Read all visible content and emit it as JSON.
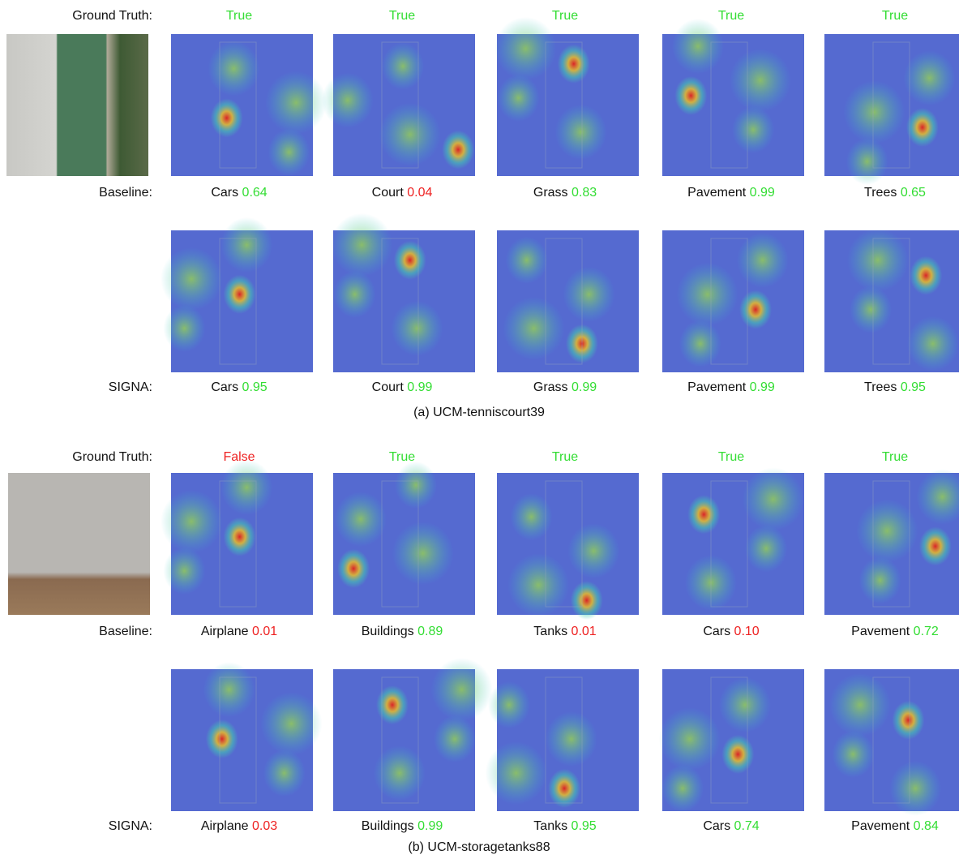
{
  "panels": [
    {
      "caption": "(a) UCM-tenniscourt39",
      "row_labels": {
        "truth": "Ground Truth:",
        "baseline": "Baseline:",
        "signa": "SIGNA:"
      },
      "columns": [
        {
          "truth": {
            "text": "True",
            "color": "#33dd33"
          },
          "baseline": {
            "label": "Cars",
            "score": "0.64",
            "color": "#33dd33"
          },
          "signa": {
            "label": "Cars",
            "score": "0.95",
            "color": "#33dd33"
          }
        },
        {
          "truth": {
            "text": "True",
            "color": "#33dd33"
          },
          "baseline": {
            "label": "Court",
            "score": "0.04",
            "color": "#ee2222"
          },
          "signa": {
            "label": "Court",
            "score": "0.99",
            "color": "#33dd33"
          }
        },
        {
          "truth": {
            "text": "True",
            "color": "#33dd33"
          },
          "baseline": {
            "label": "Grass",
            "score": "0.83",
            "color": "#33dd33"
          },
          "signa": {
            "label": "Grass",
            "score": "0.99",
            "color": "#33dd33"
          }
        },
        {
          "truth": {
            "text": "True",
            "color": "#33dd33"
          },
          "baseline": {
            "label": "Pavement",
            "score": "0.99",
            "color": "#33dd33"
          },
          "signa": {
            "label": "Pavement",
            "score": "0.99",
            "color": "#33dd33"
          }
        },
        {
          "truth": {
            "text": "True",
            "color": "#33dd33"
          },
          "baseline": {
            "label": "Trees",
            "score": "0.65",
            "color": "#33dd33"
          },
          "signa": {
            "label": "Trees",
            "score": "0.95",
            "color": "#33dd33"
          }
        }
      ]
    },
    {
      "caption": "(b) UCM-storagetanks88",
      "row_labels": {
        "truth": "Ground Truth:",
        "baseline": "Baseline:",
        "signa": "SIGNA:"
      },
      "columns": [
        {
          "truth": {
            "text": "False",
            "color": "#ee2222"
          },
          "baseline": {
            "label": "Airplane",
            "score": "0.01",
            "color": "#ee2222"
          },
          "signa": {
            "label": "Airplane",
            "score": "0.03",
            "color": "#ee2222"
          }
        },
        {
          "truth": {
            "text": "True",
            "color": "#33dd33"
          },
          "baseline": {
            "label": "Buildings",
            "score": "0.89",
            "color": "#33dd33"
          },
          "signa": {
            "label": "Buildings",
            "score": "0.99",
            "color": "#33dd33"
          }
        },
        {
          "truth": {
            "text": "True",
            "color": "#33dd33"
          },
          "baseline": {
            "label": "Tanks",
            "score": "0.01",
            "color": "#ee2222"
          },
          "signa": {
            "label": "Tanks",
            "score": "0.95",
            "color": "#33dd33"
          }
        },
        {
          "truth": {
            "text": "True",
            "color": "#33dd33"
          },
          "baseline": {
            "label": "Cars",
            "score": "0.10",
            "color": "#ee2222"
          },
          "signa": {
            "label": "Cars",
            "score": "0.74",
            "color": "#33dd33"
          }
        },
        {
          "truth": {
            "text": "True",
            "color": "#33dd33"
          },
          "baseline": {
            "label": "Pavement",
            "score": "0.72",
            "color": "#33dd33"
          },
          "signa": {
            "label": "Pavement",
            "score": "0.84",
            "color": "#33dd33"
          }
        }
      ]
    }
  ]
}
